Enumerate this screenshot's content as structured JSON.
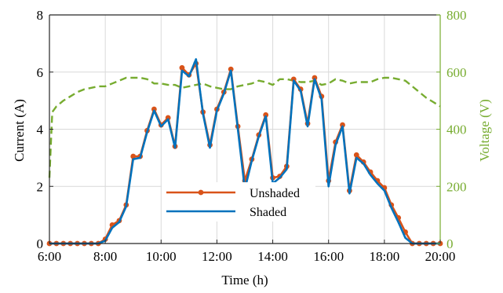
{
  "colors": {
    "unshaded": "#d95319",
    "shaded": "#0072bd",
    "voltage": "#77ac30",
    "grid": "#d9d9d9",
    "axis": "#262626"
  },
  "chart_data": {
    "type": "line",
    "xlabel": "Time (h)",
    "ylabel_left": "Current (A)",
    "ylabel_right": "Voltage (V)",
    "xlim": [
      6,
      20
    ],
    "ylim_left": [
      0,
      8
    ],
    "ylim_right": [
      0,
      800
    ],
    "x_ticks": [
      6,
      8,
      10,
      12,
      14,
      16,
      18,
      20
    ],
    "x_tick_labels": [
      "6:00",
      "8:00",
      "10:00",
      "12:00",
      "14:00",
      "16:00",
      "18:00",
      "20:00"
    ],
    "y_left_ticks": [
      0,
      2,
      4,
      6,
      8
    ],
    "y_left_tick_labels": [
      "0",
      "2",
      "4",
      "6",
      "8"
    ],
    "y_right_ticks": [
      0,
      200,
      400,
      600,
      800
    ],
    "y_right_tick_labels": [
      "0",
      "200",
      "400",
      "600",
      "800"
    ],
    "grid": true,
    "legend": {
      "position": "lower-center",
      "entries": [
        "Unshaded",
        "Shaded"
      ]
    },
    "series": [
      {
        "name": "Unshaded",
        "axis": "left",
        "style": "line-marker",
        "x": [
          6.0,
          6.25,
          6.5,
          6.75,
          7.0,
          7.25,
          7.5,
          7.75,
          8.0,
          8.25,
          8.5,
          8.75,
          9.0,
          9.25,
          9.5,
          9.75,
          10.0,
          10.25,
          10.5,
          10.75,
          11.0,
          11.25,
          11.5,
          11.75,
          12.0,
          12.25,
          12.5,
          12.75,
          13.0,
          13.25,
          13.5,
          13.75,
          14.0,
          14.25,
          14.5,
          14.75,
          15.0,
          15.25,
          15.5,
          15.75,
          16.0,
          16.25,
          16.5,
          16.75,
          17.0,
          17.25,
          17.5,
          17.75,
          18.0,
          18.25,
          18.5,
          18.75,
          19.0,
          19.25,
          19.5,
          19.75,
          20.0
        ],
        "values": [
          0,
          0,
          0,
          0,
          0,
          0,
          0,
          0,
          0.15,
          0.65,
          0.8,
          1.35,
          3.05,
          3.05,
          3.95,
          4.7,
          4.15,
          4.4,
          3.4,
          6.15,
          5.9,
          6.3,
          4.6,
          3.45,
          4.7,
          5.3,
          6.1,
          4.1,
          2.2,
          2.95,
          3.8,
          4.5,
          2.3,
          2.35,
          2.7,
          5.75,
          5.4,
          4.2,
          5.8,
          5.15,
          2.2,
          3.55,
          4.15,
          1.85,
          3.1,
          2.85,
          2.5,
          2.2,
          1.95,
          1.35,
          0.9,
          0.4,
          0,
          0,
          0,
          0,
          0
        ]
      },
      {
        "name": "Shaded",
        "axis": "left",
        "style": "line",
        "x": [
          6.0,
          6.25,
          6.5,
          6.75,
          7.0,
          7.25,
          7.5,
          7.75,
          8.0,
          8.25,
          8.5,
          8.75,
          9.0,
          9.25,
          9.5,
          9.75,
          10.0,
          10.25,
          10.5,
          10.75,
          11.0,
          11.25,
          11.5,
          11.75,
          12.0,
          12.25,
          12.5,
          12.75,
          13.0,
          13.25,
          13.5,
          13.75,
          14.0,
          14.25,
          14.5,
          14.75,
          15.0,
          15.25,
          15.5,
          15.75,
          16.0,
          16.25,
          16.5,
          16.75,
          17.0,
          17.25,
          17.5,
          17.75,
          18.0,
          18.25,
          18.5,
          18.75,
          19.0,
          19.25,
          19.5,
          19.75,
          20.0
        ],
        "values": [
          0,
          0,
          0,
          0,
          0,
          0,
          0,
          0,
          0.1,
          0.55,
          0.75,
          1.3,
          2.95,
          3.0,
          3.9,
          4.65,
          4.1,
          4.35,
          3.35,
          6.05,
          5.85,
          6.45,
          4.55,
          3.35,
          4.65,
          5.25,
          6.05,
          4.0,
          1.9,
          2.9,
          3.75,
          4.45,
          2.1,
          2.3,
          2.6,
          5.7,
          5.35,
          4.1,
          5.75,
          5.05,
          2.0,
          3.45,
          4.1,
          1.75,
          3.0,
          2.8,
          2.4,
          2.1,
          1.85,
          1.25,
          0.75,
          0.2,
          0,
          0,
          0,
          0,
          0
        ]
      },
      {
        "name": "Voltage",
        "axis": "right",
        "style": "dashed",
        "x": [
          6.0,
          6.1,
          6.25,
          6.5,
          6.75,
          7.0,
          7.25,
          7.5,
          7.75,
          8.0,
          8.25,
          8.5,
          8.75,
          9.0,
          9.25,
          9.5,
          9.75,
          10.0,
          10.25,
          10.5,
          10.75,
          11.0,
          11.25,
          11.5,
          11.75,
          12.0,
          12.25,
          12.5,
          12.75,
          13.0,
          13.25,
          13.5,
          13.75,
          14.0,
          14.25,
          14.5,
          14.75,
          15.0,
          15.25,
          15.5,
          15.75,
          16.0,
          16.25,
          16.5,
          16.75,
          17.0,
          17.25,
          17.5,
          17.75,
          18.0,
          18.25,
          18.5,
          18.75,
          19.0,
          19.25,
          19.5,
          19.75,
          20.0
        ],
        "values": [
          230,
          460,
          480,
          500,
          515,
          530,
          540,
          545,
          550,
          550,
          560,
          570,
          580,
          580,
          580,
          575,
          560,
          560,
          555,
          555,
          545,
          550,
          555,
          560,
          550,
          545,
          540,
          540,
          550,
          555,
          560,
          570,
          565,
          555,
          575,
          575,
          570,
          565,
          565,
          570,
          555,
          560,
          575,
          570,
          560,
          565,
          565,
          565,
          575,
          580,
          580,
          575,
          570,
          550,
          530,
          510,
          495,
          480
        ]
      }
    ]
  }
}
